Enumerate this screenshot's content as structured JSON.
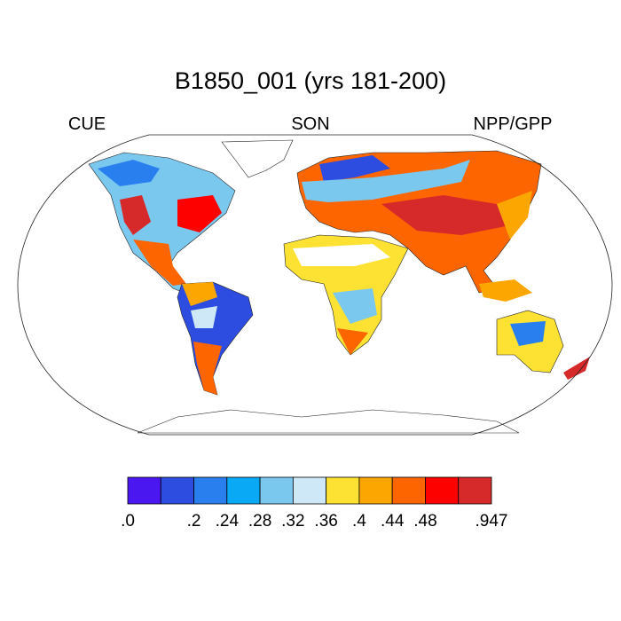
{
  "header": {
    "title": "B1850_001 (yrs 181-200)",
    "left": "CUE",
    "center": "SON",
    "right": "NPP/GPP"
  },
  "colorbar": {
    "colors": [
      "#4b17f0",
      "#2d4de0",
      "#2a7fef",
      "#0aa9f5",
      "#7bc8ef",
      "#cfe8f7",
      "#fde233",
      "#fca601",
      "#fd6500",
      "#fd0000",
      "#d62a2a"
    ],
    "labels": [
      ".0",
      null,
      ".2",
      ".24",
      ".28",
      ".32",
      ".36",
      ".4",
      ".44",
      ".48",
      null,
      ".947"
    ]
  }
}
